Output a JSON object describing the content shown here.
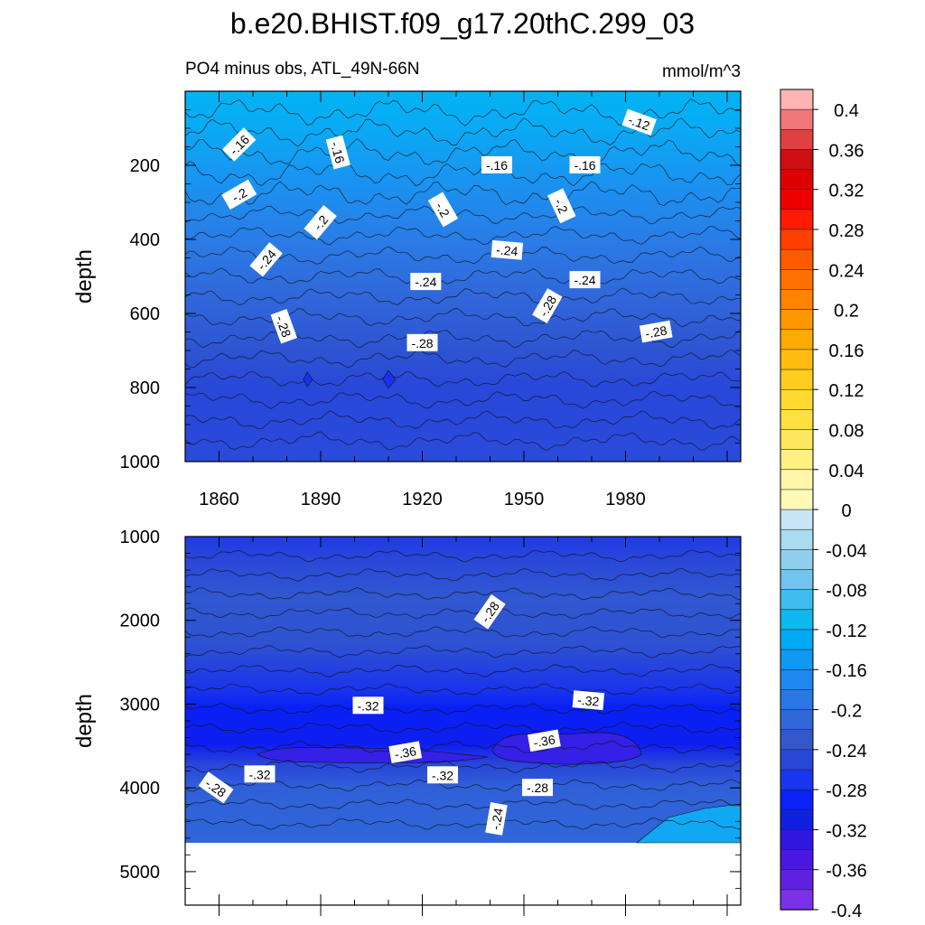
{
  "chart_data": {
    "type": "heatmap",
    "title": "b.e20.BHIST.f09_g17.20thC.299_03",
    "subtitle_left": "PO4 minus obs, ATL_49N-66N",
    "subtitle_right": "mmol/m^3",
    "xlim": [
      1850,
      2014
    ],
    "x_ticks": [
      "1860",
      "1890",
      "1920",
      "1950",
      "1980"
    ],
    "panels": [
      {
        "ylabel": "depth",
        "ylim": [
          0,
          1000
        ],
        "y_ticks": [
          "200",
          "400",
          "600",
          "800",
          "1000"
        ],
        "contour_labels": [
          {
            "text": "-.16",
            "x": 1866,
            "depth": 145,
            "angle": -45
          },
          {
            "text": "-.16",
            "x": 1895,
            "depth": 165,
            "angle": 75
          },
          {
            "text": "-.12",
            "x": 1984,
            "depth": 85,
            "angle": 20
          },
          {
            "text": "-.16",
            "x": 1942,
            "depth": 200,
            "angle": 0
          },
          {
            "text": "-.16",
            "x": 1968,
            "depth": 200,
            "angle": 0
          },
          {
            "text": "-.2",
            "x": 1866,
            "depth": 280,
            "angle": -30
          },
          {
            "text": "-.2",
            "x": 1890,
            "depth": 355,
            "angle": -50
          },
          {
            "text": "-.2",
            "x": 1926,
            "depth": 320,
            "angle": 60
          },
          {
            "text": "-.2",
            "x": 1961,
            "depth": 310,
            "angle": 65
          },
          {
            "text": "-.24",
            "x": 1874,
            "depth": 455,
            "angle": -50
          },
          {
            "text": "-.24",
            "x": 1945,
            "depth": 430,
            "angle": 5
          },
          {
            "text": "-.24",
            "x": 1921,
            "depth": 515,
            "angle": 0
          },
          {
            "text": "-.24",
            "x": 1968,
            "depth": 510,
            "angle": 0
          },
          {
            "text": "-.28",
            "x": 1879,
            "depth": 635,
            "angle": 70
          },
          {
            "text": "-.28",
            "x": 1957,
            "depth": 580,
            "angle": -60
          },
          {
            "text": "-.28",
            "x": 1920,
            "depth": 680,
            "angle": 0
          },
          {
            "text": "-.28",
            "x": 1989,
            "depth": 650,
            "angle": -10
          }
        ]
      },
      {
        "ylabel": "depth",
        "ylim": [
          1000,
          5400
        ],
        "y_ticks": [
          "1000",
          "2000",
          "3000",
          "4000",
          "5000"
        ],
        "contour_labels": [
          {
            "text": "-.28",
            "x": 1940,
            "depth": 1900,
            "angle": -55
          },
          {
            "text": "-.32",
            "x": 1904,
            "depth": 3020,
            "angle": 0
          },
          {
            "text": "-.32",
            "x": 1969,
            "depth": 2960,
            "angle": 5
          },
          {
            "text": "-.36",
            "x": 1915,
            "depth": 3580,
            "angle": -10
          },
          {
            "text": "-.36",
            "x": 1956,
            "depth": 3440,
            "angle": -10
          },
          {
            "text": "-.32",
            "x": 1872,
            "depth": 3840,
            "angle": 0
          },
          {
            "text": "-.32",
            "x": 1926,
            "depth": 3850,
            "angle": 0
          },
          {
            "text": "-.28",
            "x": 1859,
            "depth": 4000,
            "angle": 35
          },
          {
            "text": "-.28",
            "x": 1954,
            "depth": 4000,
            "angle": 0
          },
          {
            "text": "-.24",
            "x": 1942,
            "depth": 4370,
            "angle": -80
          }
        ],
        "missing_below_depth": 4620
      }
    ],
    "colorbar": {
      "levels": [
        "0.4",
        "0.36",
        "0.32",
        "0.28",
        "0.24",
        "0.2",
        "0.16",
        "0.12",
        "0.08",
        "0.04",
        "0",
        "-0.04",
        "-0.08",
        "-0.12",
        "-0.16",
        "-0.2",
        "-0.24",
        "-0.28",
        "-0.32",
        "-0.36",
        "-0.4"
      ],
      "colors_top_to_bottom": [
        "#ffb3b3",
        "#f07878",
        "#e04040",
        "#cc1010",
        "#dd0000",
        "#ee0000",
        "#ff1a00",
        "#ff4000",
        "#ff5a00",
        "#ff7000",
        "#ff8400",
        "#ff9700",
        "#ffaa00",
        "#ffbb10",
        "#ffcc20",
        "#ffd830",
        "#ffe040",
        "#ffe860",
        "#fff080",
        "#fff6a8",
        "#fffab8",
        "#c8e6f5",
        "#aadcf0",
        "#90d0ee",
        "#70c4ee",
        "#40bcee",
        "#10b8f0",
        "#00aaf5",
        "#1098f2",
        "#1e88ee",
        "#2a78e6",
        "#3068da",
        "#3458cc",
        "#2a48d8",
        "#1a36ee",
        "#0a22f5",
        "#1020e0",
        "#3018e0",
        "#4a18e0",
        "#6020e0",
        "#7c30e8"
      ]
    }
  }
}
